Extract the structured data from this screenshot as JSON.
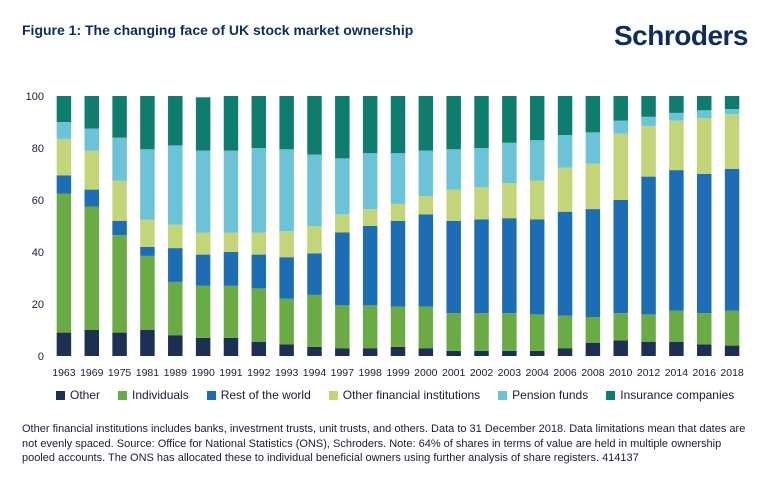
{
  "header": {
    "title": "Figure 1: The changing face of UK stock market ownership",
    "brand": "Schroders"
  },
  "footnote": "Other financial institutions includes banks, investment trusts, unit trusts, and others. Data to 31 December 2018. Data limitations mean that dates are not evenly spaced. Source: Office for National Statistics (ONS), Schroders. Note: 64% of shares in terms of value are held in multiple ownership pooled accounts. The ONS has allocated these to individual beneficial owners using further analysis of share registers. 414137",
  "chart_data": {
    "type": "bar",
    "stacked": true,
    "ylim": [
      0,
      100
    ],
    "yticks": [
      0,
      20,
      40,
      60,
      80,
      100
    ],
    "grid": false,
    "legend_position": "bottom",
    "categories": [
      "1963",
      "1969",
      "1975",
      "1981",
      "1989",
      "1990",
      "1991",
      "1992",
      "1993",
      "1994",
      "1997",
      "1998",
      "1999",
      "2000",
      "2001",
      "2002",
      "2003",
      "2004",
      "2006",
      "2008",
      "2010",
      "2012",
      "2014",
      "2016",
      "2018"
    ],
    "series": [
      {
        "name": "Other",
        "color": "#1d2f52",
        "values": [
          9,
          10,
          9,
          10,
          8,
          7,
          7,
          5.5,
          4.5,
          3.5,
          3,
          3,
          3.5,
          3,
          2,
          2,
          2,
          2,
          3,
          5,
          6,
          5.5,
          5.5,
          4.5,
          4
        ]
      },
      {
        "name": "Individuals",
        "color": "#6aab45",
        "values": [
          53.5,
          47.5,
          37.5,
          28.5,
          20.5,
          20,
          20,
          20.5,
          17.5,
          20,
          16.5,
          16.5,
          15.5,
          16,
          14.5,
          14.5,
          14.5,
          14,
          12.5,
          10,
          10.5,
          10.5,
          12,
          12,
          13.5
        ]
      },
      {
        "name": "Rest of the world",
        "color": "#1d6db4",
        "values": [
          7,
          6.5,
          5.5,
          3.5,
          13,
          12,
          13,
          13,
          16,
          16,
          28,
          30.5,
          33,
          35.5,
          35.5,
          36,
          36.5,
          36.5,
          40,
          41.5,
          43.5,
          53,
          54,
          53.5,
          54.5
        ]
      },
      {
        "name": "Other financial institutions",
        "color": "#c2d579",
        "values": [
          14,
          15,
          15.5,
          10.5,
          9,
          8.5,
          7.5,
          8.5,
          10,
          10.5,
          7,
          6.5,
          6.5,
          7,
          12,
          12.5,
          13.5,
          15,
          17,
          17.5,
          25.5,
          19.5,
          19,
          21.5,
          21
        ]
      },
      {
        "name": "Pension funds",
        "color": "#6cc3d8",
        "values": [
          6.5,
          8.5,
          16.5,
          27,
          30.5,
          31.5,
          31.5,
          32.5,
          31.5,
          27.5,
          21.5,
          21.5,
          19.5,
          17.5,
          15.5,
          15,
          15.5,
          15.5,
          12.5,
          12,
          5,
          3.5,
          3,
          3,
          2
        ]
      },
      {
        "name": "Insurance companies",
        "color": "#0f7d6d",
        "values": [
          10,
          12.5,
          16,
          20.5,
          19,
          20.5,
          21,
          20,
          20.5,
          22.5,
          24,
          22,
          22,
          21,
          20.5,
          20,
          18,
          17,
          15,
          14,
          9.5,
          8,
          6.5,
          5.5,
          5
        ]
      }
    ]
  }
}
